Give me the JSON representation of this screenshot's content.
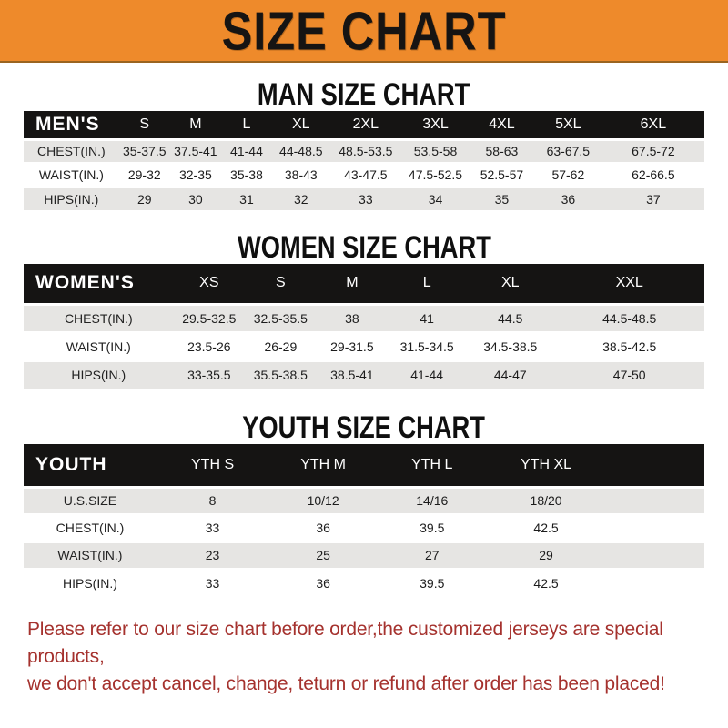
{
  "banner": {
    "title": "SIZE CHART",
    "bg_color": "#EE8A2B",
    "text_color": "#161413"
  },
  "sections": [
    {
      "id": "men",
      "title": "MAN SIZE CHART",
      "header_label": "MEN'S",
      "columns": [
        "S",
        "M",
        "L",
        "XL",
        "2XL",
        "3XL",
        "4XL",
        "5XL",
        "6XL"
      ],
      "rows": [
        {
          "label": "CHEST(IN.)",
          "values": [
            "35-37.5",
            "37.5-41",
            "41-44",
            "44-48.5",
            "48.5-53.5",
            "53.5-58",
            "58-63",
            "63-67.5",
            "67.5-72"
          ]
        },
        {
          "label": "WAIST(IN.)",
          "values": [
            "29-32",
            "32-35",
            "35-38",
            "38-43",
            "43-47.5",
            "47.5-52.5",
            "52.5-57",
            "57-62",
            "62-66.5"
          ]
        },
        {
          "label": "HIPS(IN.)",
          "values": [
            "29",
            "30",
            "31",
            "32",
            "33",
            "34",
            "35",
            "36",
            "37"
          ]
        }
      ]
    },
    {
      "id": "women",
      "title": "WOMEN SIZE CHART",
      "header_label": "WOMEN'S",
      "columns": [
        "XS",
        "S",
        "M",
        "L",
        "XL",
        "XXL"
      ],
      "rows": [
        {
          "label": "CHEST(IN.)",
          "values": [
            "29.5-32.5",
            "32.5-35.5",
            "38",
            "41",
            "44.5",
            "44.5-48.5"
          ]
        },
        {
          "label": "WAIST(IN.)",
          "values": [
            "23.5-26",
            "26-29",
            "29-31.5",
            "31.5-34.5",
            "34.5-38.5",
            "38.5-42.5"
          ]
        },
        {
          "label": "HIPS(IN.)",
          "values": [
            "33-35.5",
            "35.5-38.5",
            "38.5-41",
            "41-44",
            "44-47",
            "47-50"
          ]
        }
      ]
    },
    {
      "id": "youth",
      "title": "YOUTH SIZE CHART",
      "header_label": "YOUTH",
      "columns": [
        "YTH S",
        "YTH M",
        "YTH L",
        "YTH XL"
      ],
      "rows": [
        {
          "label": "U.S.SIZE",
          "values": [
            "8",
            "10/12",
            "14/16",
            "18/20"
          ]
        },
        {
          "label": "CHEST(IN.)",
          "values": [
            "33",
            "36",
            "39.5",
            "42.5"
          ]
        },
        {
          "label": "WAIST(IN.)",
          "values": [
            "23",
            "25",
            "27",
            "29"
          ]
        },
        {
          "label": "HIPS(IN.)",
          "values": [
            "33",
            "36",
            "39.5",
            "42.5"
          ]
        }
      ]
    }
  ],
  "table_colors": {
    "header_bg": "#151413",
    "header_text": "#ffffff",
    "stripe_grey": "#E6E5E3",
    "stripe_white": "#ffffff"
  },
  "disclaimer": {
    "line1": "Please refer to our size chart before order,the customized jerseys are special products,",
    "line2": "we don't accept cancel, change, teturn or refund after order has been placed!",
    "text_color": "#A5322E"
  }
}
